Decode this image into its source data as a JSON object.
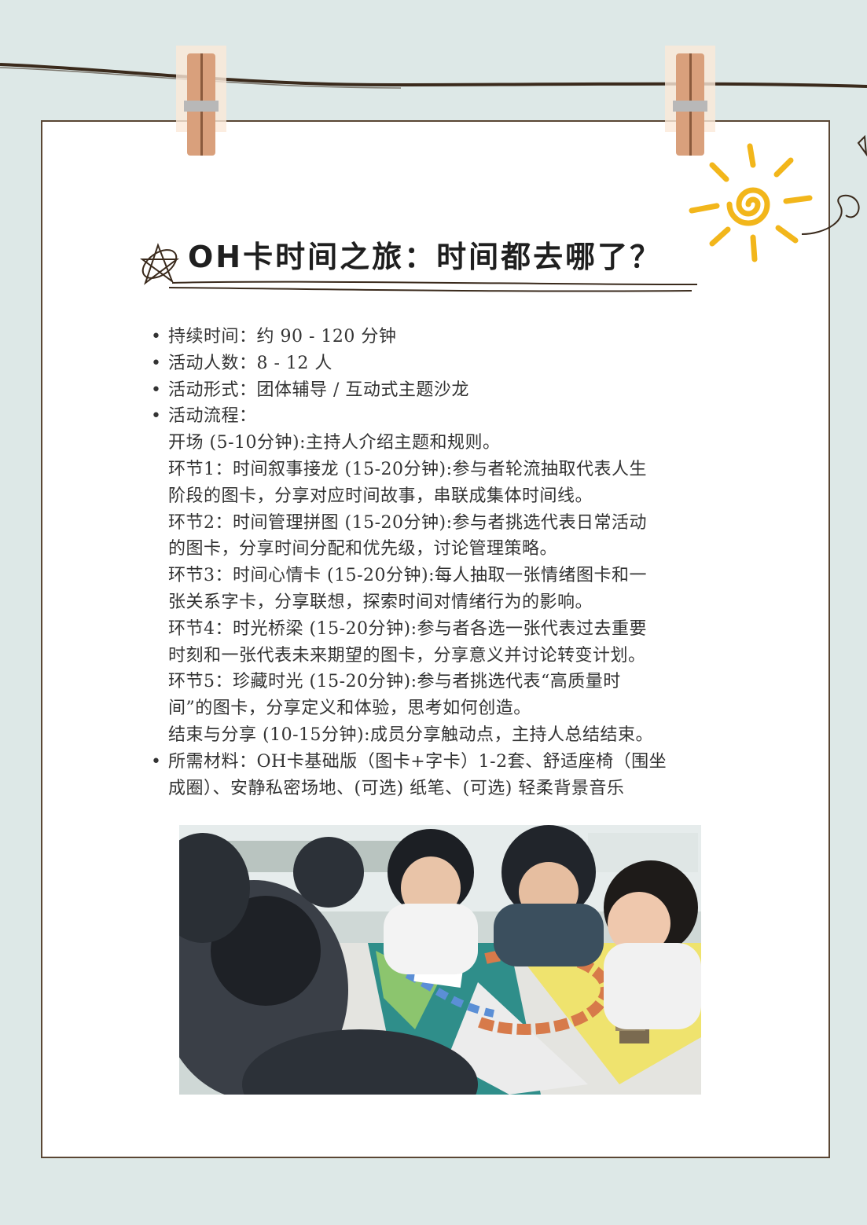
{
  "title": "OH卡时间之旅：时间都去哪了？",
  "info": [
    {
      "label": "持续时间：",
      "value": "约 90 - 120 分钟"
    },
    {
      "label": "活动人数：",
      "value": "8 - 12 人"
    },
    {
      "label": "活动形式：",
      "value": "团体辅导 / 互动式主题沙龙"
    }
  ],
  "flow_heading": "活动流程：",
  "flow_lines": [
    "开场 (5-10分钟):主持人介绍主题和规则。",
    "环节1：时间叙事接龙 (15-20分钟):参与者轮流抽取代表人生",
    "阶段的图卡，分享对应时间故事，串联成集体时间线。",
    "环节2：时间管理拼图 (15-20分钟):参与者挑选代表日常活动",
    "的图卡，分享时间分配和优先级，讨论管理策略。",
    "环节3：时间心情卡 (15-20分钟):每人抽取一张情绪图卡和一",
    "张关系字卡，分享联想，探索时间对情绪行为的影响。",
    "环节4：时光桥梁 (15-20分钟):参与者各选一张代表过去重要",
    "时刻和一张代表未来期望的图卡，分享意义并讨论转变计划。",
    "环节5：珍藏时光 (15-20分钟):参与者挑选代表“高质量时",
    "间”的图卡，分享定义和体验，思考如何创造。",
    "结束与分享 (10-15分钟):成员分享触动点，主持人总结结束。"
  ],
  "materials_lines": [
    "所需材料：OH卡基础版（图卡+字卡）1-2套、舒适座椅（围坐",
    "成圈）、安静私密场地、(可选) 纸笔、(可选) 轻柔背景音乐"
  ],
  "colors": {
    "background": "#dde8e7",
    "card": "#ffffff",
    "string": "#3a2a1c",
    "sun": "#f2b61b",
    "clip": "#d9a07c"
  }
}
